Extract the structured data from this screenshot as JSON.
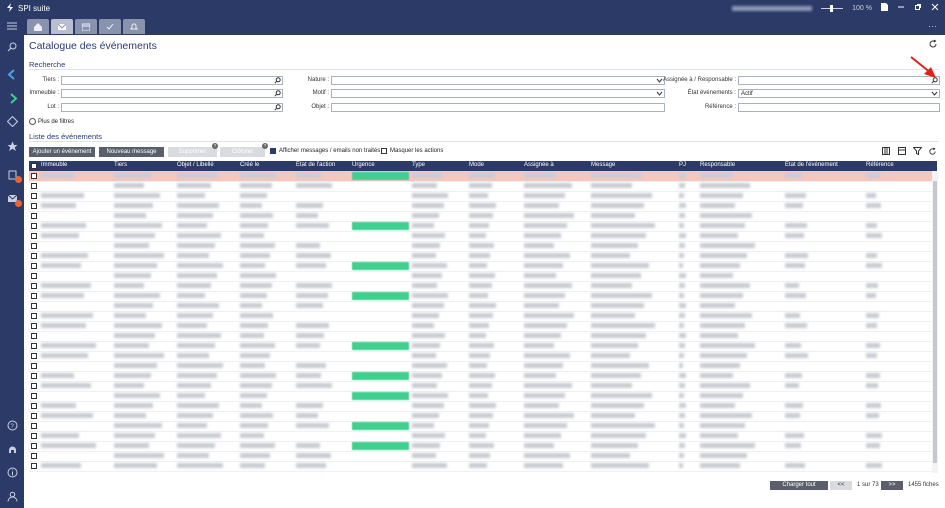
{
  "app": {
    "title": "SPI suite",
    "status_zoom": "100 %"
  },
  "page": {
    "title": "Catalogue des événements"
  },
  "search": {
    "section_title": "Recherche",
    "fields": {
      "tiers": {
        "label": "Tiers :",
        "value": ""
      },
      "immeuble": {
        "label": "Immeuble :",
        "value": ""
      },
      "lot": {
        "label": "Lot :",
        "value": ""
      },
      "nature": {
        "label": "Nature :",
        "value": ""
      },
      "motif": {
        "label": "Motif :",
        "value": ""
      },
      "objet": {
        "label": "Objet :",
        "value": ""
      },
      "assignee": {
        "label": "Assignée à / Responsable :",
        "value": ""
      },
      "etat": {
        "label": "État événements :",
        "value": "Actif"
      },
      "reference": {
        "label": "Référence :",
        "value": ""
      }
    },
    "more_filters": "Plus de filtres"
  },
  "list": {
    "section_title": "Liste des événements",
    "actions": {
      "add": "Ajouter un événement",
      "new_message": "Nouveau message",
      "delete": "Supprimer",
      "close": "Clôturer"
    },
    "options": {
      "show_untreated": {
        "label": "Afficher messages / emails non traités",
        "checked": true
      },
      "hide_actions": {
        "label": "Masquer les actions",
        "checked": false
      }
    },
    "columns": [
      "Immeuble",
      "Tiers",
      "Objet / Libellé",
      "Créé le",
      "État de l'action",
      "Urgence",
      "Type",
      "Mode",
      "Assignée à",
      "Message",
      "PJ",
      "Responsable",
      "État de l'événement",
      "Référence"
    ]
  },
  "footer": {
    "load_all": "Charger tout",
    "prev": "<<",
    "page_info": "1 sur 73",
    "next": ">>",
    "count": "1455 fiches"
  },
  "colors": {
    "navy": "#2b3a67",
    "urgent": "#3fcf8e",
    "highlight_row": "#f6c7bd",
    "annotation_arrow": "#e0201a"
  }
}
